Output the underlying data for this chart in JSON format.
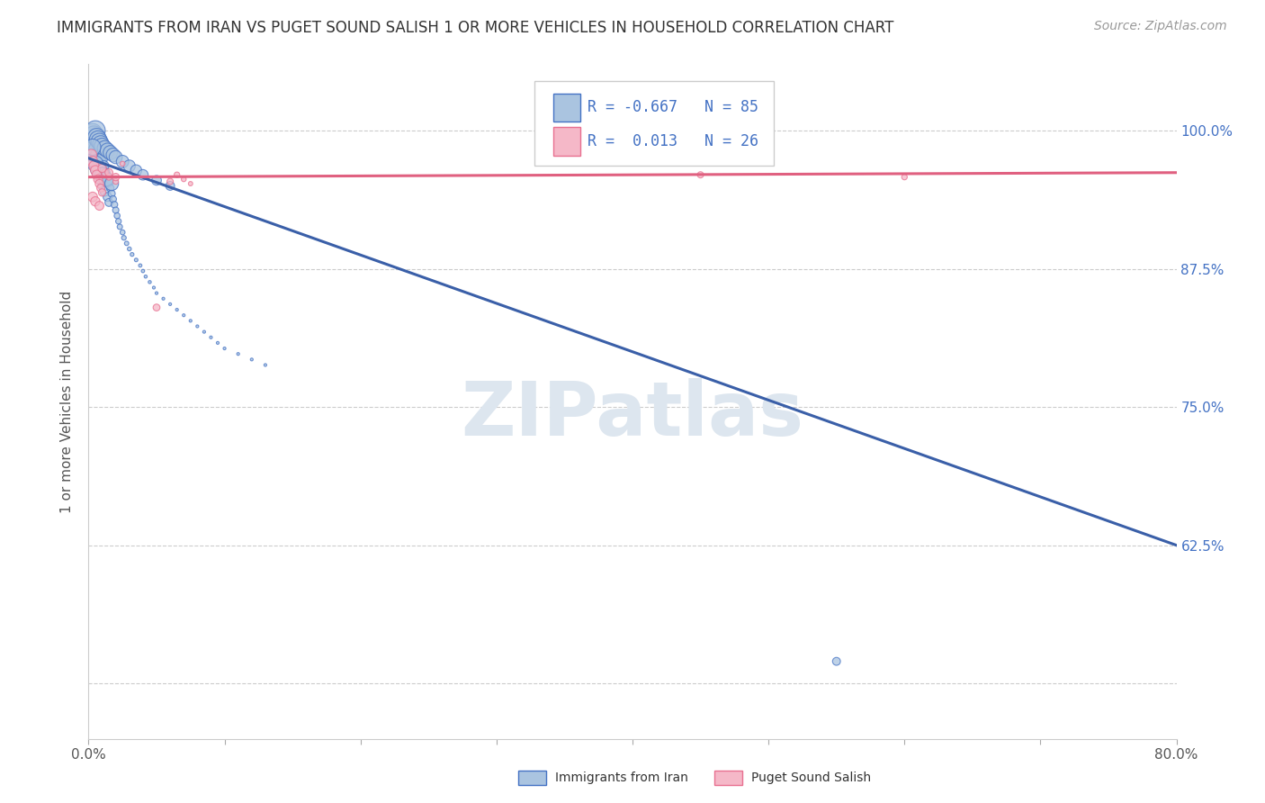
{
  "title": "IMMIGRANTS FROM IRAN VS PUGET SOUND SALISH 1 OR MORE VEHICLES IN HOUSEHOLD CORRELATION CHART",
  "source": "Source: ZipAtlas.com",
  "ylabel": "1 or more Vehicles in Household",
  "legend_labels": [
    "Immigrants from Iran",
    "Puget Sound Salish"
  ],
  "blue_R": -0.667,
  "blue_N": 85,
  "pink_R": 0.013,
  "pink_N": 26,
  "blue_color": "#aac4e0",
  "pink_color": "#f5b8c8",
  "blue_edge_color": "#4472c4",
  "pink_edge_color": "#e87090",
  "blue_line_color": "#3a5fa8",
  "pink_line_color": "#e06080",
  "watermark": "ZIPatlas",
  "watermark_color": "#dde6ef",
  "xlim": [
    0.0,
    0.8
  ],
  "ylim": [
    0.45,
    1.06
  ],
  "xticks": [
    0.0,
    0.1,
    0.2,
    0.3,
    0.4,
    0.5,
    0.6,
    0.7,
    0.8
  ],
  "xticklabels": [
    "0.0%",
    "",
    "",
    "",
    "",
    "",
    "",
    "",
    "80.0%"
  ],
  "yticks": [
    0.5,
    0.625,
    0.75,
    0.875,
    1.0
  ],
  "yticklabels": [
    "",
    "62.5%",
    "75.0%",
    "87.5%",
    "100.0%"
  ],
  "blue_scatter_x": [
    0.002,
    0.003,
    0.003,
    0.004,
    0.004,
    0.005,
    0.005,
    0.005,
    0.006,
    0.006,
    0.007,
    0.007,
    0.008,
    0.008,
    0.009,
    0.009,
    0.01,
    0.01,
    0.011,
    0.011,
    0.012,
    0.012,
    0.013,
    0.014,
    0.015,
    0.015,
    0.016,
    0.017,
    0.018,
    0.019,
    0.02,
    0.021,
    0.022,
    0.023,
    0.025,
    0.026,
    0.028,
    0.03,
    0.032,
    0.035,
    0.038,
    0.04,
    0.042,
    0.045,
    0.048,
    0.05,
    0.055,
    0.06,
    0.065,
    0.07,
    0.075,
    0.08,
    0.085,
    0.09,
    0.095,
    0.1,
    0.11,
    0.12,
    0.13,
    0.003,
    0.004,
    0.005,
    0.006,
    0.007,
    0.008,
    0.009,
    0.01,
    0.012,
    0.014,
    0.016,
    0.018,
    0.02,
    0.025,
    0.03,
    0.035,
    0.04,
    0.05,
    0.06,
    0.003,
    0.005,
    0.007,
    0.01,
    0.013,
    0.017,
    0.55
  ],
  "blue_scatter_y": [
    0.99,
    0.985,
    0.995,
    0.98,
    0.992,
    0.975,
    0.988,
    0.996,
    0.983,
    0.97,
    0.978,
    0.993,
    0.972,
    0.965,
    0.96,
    0.988,
    0.955,
    0.975,
    0.968,
    0.95,
    0.962,
    0.945,
    0.958,
    0.94,
    0.953,
    0.935,
    0.948,
    0.943,
    0.938,
    0.933,
    0.928,
    0.923,
    0.918,
    0.913,
    0.908,
    0.903,
    0.898,
    0.893,
    0.888,
    0.883,
    0.878,
    0.873,
    0.868,
    0.863,
    0.858,
    0.853,
    0.848,
    0.843,
    0.838,
    0.833,
    0.828,
    0.823,
    0.818,
    0.813,
    0.808,
    0.803,
    0.798,
    0.793,
    0.788,
    0.998,
    0.996,
    1.0,
    0.994,
    0.992,
    0.99,
    0.988,
    0.986,
    0.984,
    0.982,
    0.98,
    0.978,
    0.976,
    0.972,
    0.968,
    0.964,
    0.96,
    0.955,
    0.95,
    0.985,
    0.97,
    0.965,
    0.96,
    0.956,
    0.952,
    0.52
  ],
  "blue_scatter_size": [
    200,
    180,
    160,
    150,
    140,
    130,
    200,
    180,
    160,
    150,
    140,
    130,
    120,
    110,
    100,
    90,
    85,
    80,
    75,
    70,
    65,
    60,
    55,
    50,
    45,
    40,
    35,
    32,
    30,
    28,
    25,
    22,
    20,
    18,
    16,
    14,
    12,
    10,
    9,
    8,
    7,
    7,
    6,
    6,
    5,
    5,
    5,
    5,
    5,
    5,
    5,
    5,
    5,
    5,
    5,
    5,
    5,
    5,
    5,
    220,
    210,
    250,
    200,
    190,
    180,
    170,
    160,
    150,
    140,
    130,
    120,
    110,
    100,
    90,
    80,
    70,
    60,
    50,
    170,
    160,
    150,
    140,
    130,
    120,
    40
  ],
  "pink_scatter_x": [
    0.002,
    0.003,
    0.004,
    0.005,
    0.006,
    0.007,
    0.008,
    0.009,
    0.01,
    0.012,
    0.015,
    0.02,
    0.025,
    0.003,
    0.005,
    0.008,
    0.01,
    0.015,
    0.02,
    0.05,
    0.06,
    0.065,
    0.07,
    0.075,
    0.45,
    0.6
  ],
  "pink_scatter_y": [
    0.978,
    0.972,
    0.968,
    0.964,
    0.96,
    0.956,
    0.952,
    0.948,
    0.944,
    0.962,
    0.958,
    0.954,
    0.97,
    0.94,
    0.936,
    0.932,
    0.966,
    0.962,
    0.958,
    0.84,
    0.954,
    0.96,
    0.956,
    0.952,
    0.96,
    0.958
  ],
  "pink_scatter_size": [
    80,
    70,
    65,
    60,
    55,
    50,
    45,
    40,
    35,
    30,
    25,
    20,
    15,
    60,
    55,
    50,
    45,
    40,
    35,
    30,
    25,
    20,
    15,
    12,
    25,
    20
  ],
  "blue_trend_x0": 0.0,
  "blue_trend_x1": 0.8,
  "blue_trend_y0": 0.975,
  "blue_trend_y1": 0.625,
  "pink_trend_x0": 0.0,
  "pink_trend_x1": 0.8,
  "pink_trend_y0": 0.958,
  "pink_trend_y1": 0.962,
  "title_fontsize": 12,
  "source_fontsize": 10,
  "ylabel_fontsize": 11,
  "tick_fontsize": 11,
  "legend_fontsize": 12,
  "background_color": "#ffffff",
  "grid_color": "#cccccc",
  "legend_text_color": "#4472c4"
}
